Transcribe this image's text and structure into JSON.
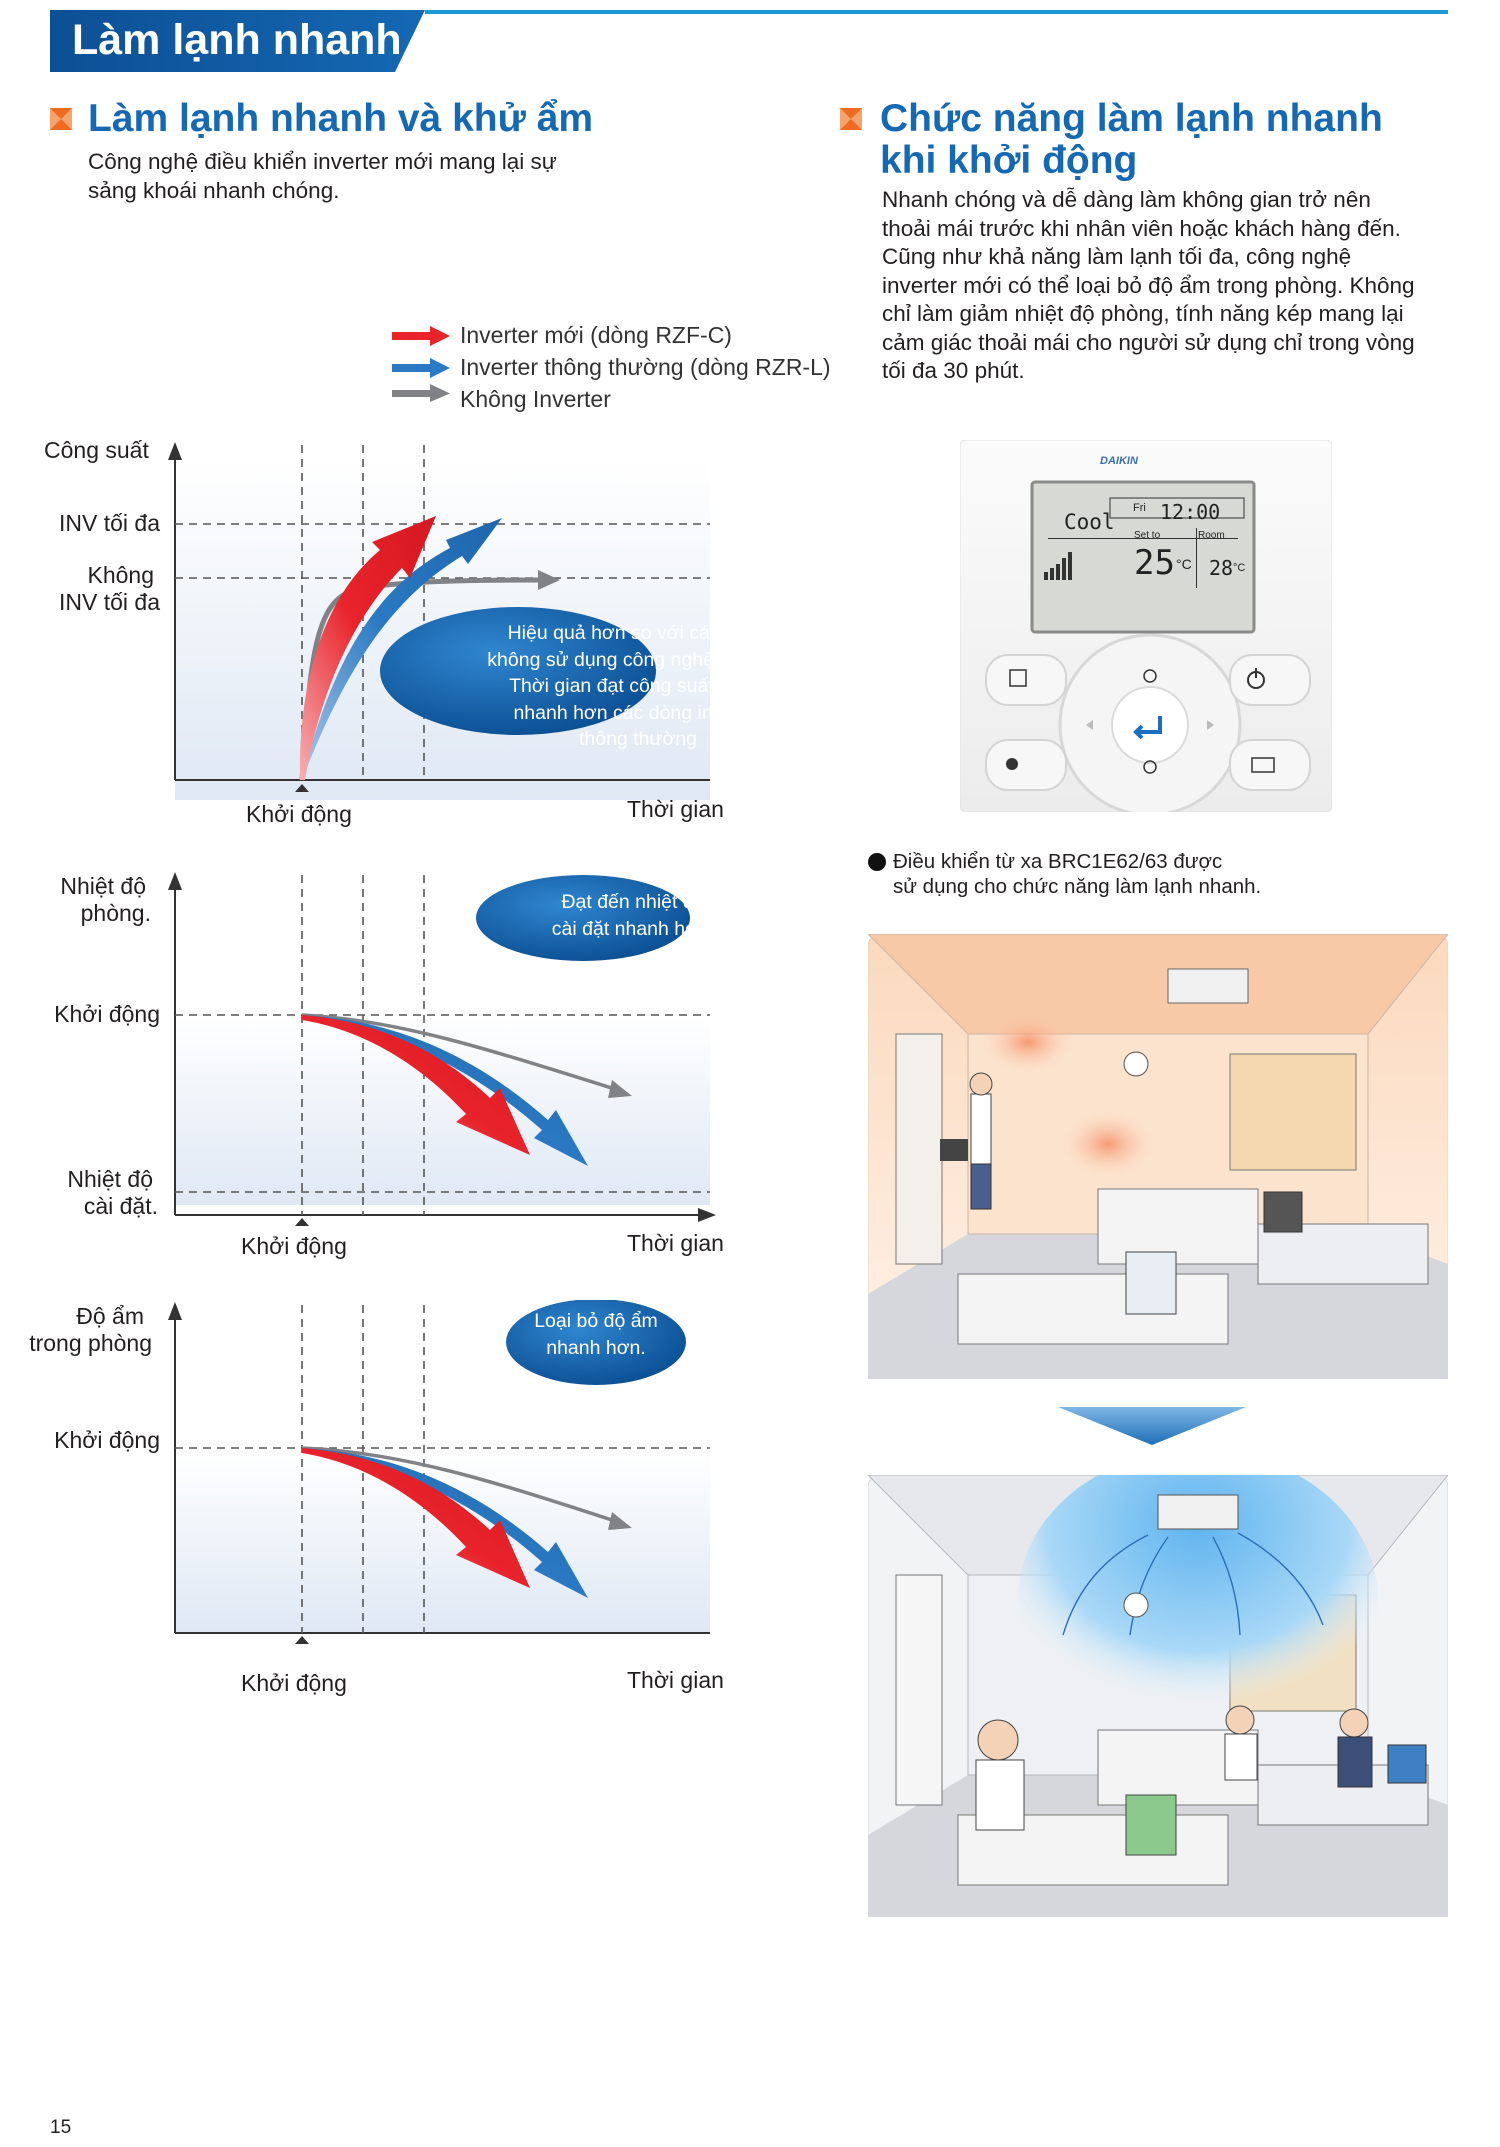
{
  "header": {
    "title": "Làm lạnh nhanh"
  },
  "left_section": {
    "title": "Làm lạnh nhanh và khử ẩm",
    "desc_lines": [
      "Công nghệ điều khiển inverter mới mang lại sự",
      "sảng khoái nhanh chóng."
    ]
  },
  "legend": {
    "items": [
      {
        "label": "Inverter mới (dòng RZF-C)",
        "color": "#e8232b"
      },
      {
        "label": "Inverter thông thường (dòng RZR-L)",
        "color": "#2a79c2"
      },
      {
        "label": "Không Inverter",
        "color": "#808285"
      }
    ]
  },
  "chart_capacity": {
    "y_title": "Công suất",
    "y_labels": {
      "top": "INV tối đa",
      "mid_1": "Không",
      "mid_2": "INV tối đa"
    },
    "x_start": "Khởi động",
    "x_end": "Thời gian",
    "bubble_lines": [
      "Hiệu quả hơn so với các dòng",
      "không sử dụng công nghệ inverter.",
      "Thời gian đạt công suất tối đa",
      "nhanh hơn các dòng inverter",
      "thông thường"
    ]
  },
  "chart_temp": {
    "y_title_1": "Nhiệt độ",
    "y_title_2": "phòng.",
    "y_start": "Khởi động",
    "y_set_1": "Nhiệt độ",
    "y_set_2": "cài đặt.",
    "x_start": "Khởi động",
    "x_end": "Thời gian",
    "bubble_lines": [
      "Đạt đến nhiệt độ",
      "cài đặt nhanh hơn."
    ]
  },
  "chart_humidity": {
    "y_title_1": "Độ ẩm",
    "y_title_2": "trong phòng",
    "y_start": "Khởi động",
    "x_start": "Khởi động",
    "x_end": "Thời gian",
    "bubble_lines": [
      "Loại bỏ độ ẩm",
      "nhanh hơn."
    ]
  },
  "right_section": {
    "title_line1": "Chức năng làm lạnh nhanh",
    "title_line2": "khi khởi động",
    "desc_lines": [
      "Nhanh chóng và dễ dàng làm không gian trở nên",
      "thoải mái trước khi nhân viên hoặc khách hàng đến.",
      "Cũng như khả năng làm lạnh tối đa, công nghệ",
      "inverter mới có thể loại bỏ độ ẩm trong phòng. Không",
      "chỉ làm giảm nhiệt độ phòng, tính năng kép mang lại",
      "cảm giác thoải mái cho người sử dụng chỉ trong vòng",
      "tối đa 30 phút."
    ]
  },
  "remote": {
    "brand": "DAIKIN",
    "mode": "Cool",
    "day": "Fri",
    "time": "12:00",
    "set_label": "Set to",
    "room_label": "Room",
    "set_temp": "25",
    "room_temp": "28",
    "unit": "°C"
  },
  "remote_caption": {
    "line1": "Điều khiển từ xa BRC1E62/63 được",
    "line2": "sử dụng cho chức năng làm lạnh nhanh."
  },
  "page_number": "15"
}
